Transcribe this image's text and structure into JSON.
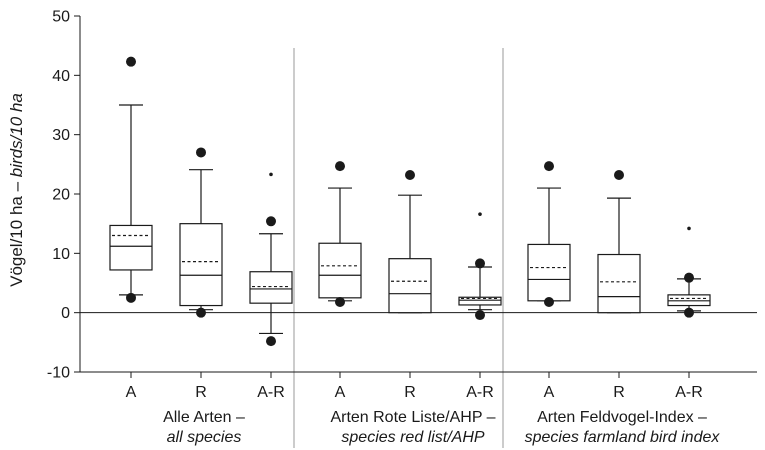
{
  "chart_data": {
    "type": "box",
    "ylabel_plain": "Vögel/10 ha – ",
    "ylabel_italic": "birds/10 ha",
    "ylim": [
      -10,
      50
    ],
    "yticks": [
      "-10",
      "0",
      "10",
      "20",
      "30",
      "40",
      "50"
    ],
    "grid": false,
    "groups": [
      {
        "label_de": "Alle Arten –",
        "label_en": "all species",
        "boxes": [
          {
            "category": "A",
            "whisker_low": 3.0,
            "q1": 7.2,
            "median": 11.2,
            "mean": 13.0,
            "q3": 14.7,
            "whisker_high": 35.0,
            "outlier_low": 2.5,
            "outlier_high": 42.3,
            "star": null
          },
          {
            "category": "R",
            "whisker_low": 0.5,
            "q1": 1.2,
            "median": 6.3,
            "mean": 8.6,
            "q3": 15.0,
            "whisker_high": 24.1,
            "outlier_low": 0.0,
            "outlier_high": 27.0,
            "star": null
          },
          {
            "category": "A-R",
            "whisker_low": -3.5,
            "q1": 1.6,
            "median": 4.0,
            "mean": 4.4,
            "q3": 6.9,
            "whisker_high": 13.3,
            "outlier_low": -4.8,
            "outlier_high": 15.4,
            "star": 23.3
          }
        ]
      },
      {
        "label_de": "Arten Rote Liste/AHP –",
        "label_en": "species red list/AHP",
        "boxes": [
          {
            "category": "A",
            "whisker_low": 2.0,
            "q1": 2.5,
            "median": 6.3,
            "mean": 7.9,
            "q3": 11.7,
            "whisker_high": 21.0,
            "outlier_low": 1.8,
            "outlier_high": 24.7,
            "star": null
          },
          {
            "category": "R",
            "whisker_low": 0.0,
            "q1": 0.0,
            "median": 3.2,
            "mean": 5.3,
            "q3": 9.1,
            "whisker_high": 19.8,
            "outlier_low": null,
            "outlier_high": 23.2,
            "star": null
          },
          {
            "category": "A-R",
            "whisker_low": 0.5,
            "q1": 1.3,
            "median": 2.1,
            "mean": 2.4,
            "q3": 2.6,
            "whisker_high": 7.7,
            "outlier_low": -0.4,
            "outlier_high": 8.3,
            "star": 16.6
          }
        ]
      },
      {
        "label_de": "Arten Feldvogel-Index –",
        "label_en": "species farmland bird index",
        "boxes": [
          {
            "category": "A",
            "whisker_low": 2.0,
            "q1": 2.0,
            "median": 5.6,
            "mean": 7.6,
            "q3": 11.5,
            "whisker_high": 21.0,
            "outlier_low": 1.8,
            "outlier_high": 24.7,
            "star": null
          },
          {
            "category": "R",
            "whisker_low": 0.0,
            "q1": 0.0,
            "median": 2.7,
            "mean": 5.2,
            "q3": 9.8,
            "whisker_high": 19.3,
            "outlier_low": null,
            "outlier_high": 23.2,
            "star": null
          },
          {
            "category": "A-R",
            "whisker_low": 0.3,
            "q1": 1.2,
            "median": 2.0,
            "mean": 2.4,
            "q3": 3.0,
            "whisker_high": 5.7,
            "outlier_low": 0.0,
            "outlier_high": 5.9,
            "star": 14.2
          }
        ]
      }
    ]
  }
}
